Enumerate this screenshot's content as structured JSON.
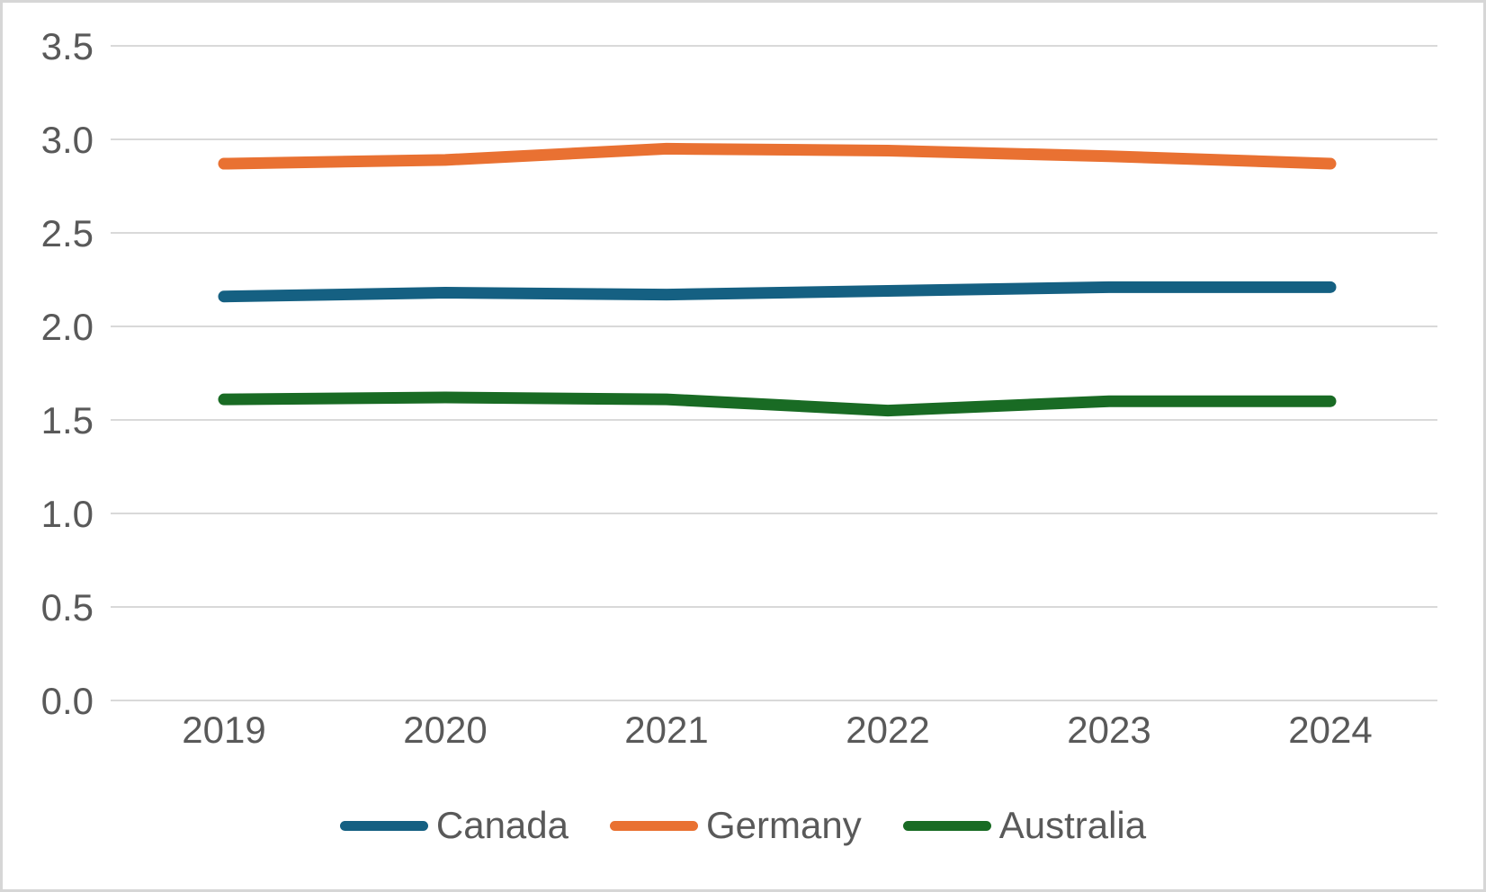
{
  "chart_data": {
    "type": "line",
    "title": "",
    "categories": [
      "2019",
      "2020",
      "2021",
      "2022",
      "2023",
      "2024"
    ],
    "series": [
      {
        "name": "Canada",
        "color": "#156082",
        "values": [
          2.16,
          2.18,
          2.17,
          2.19,
          2.21,
          2.21
        ]
      },
      {
        "name": "Germany",
        "color": "#E97132",
        "values": [
          2.87,
          2.89,
          2.95,
          2.94,
          2.91,
          2.87
        ]
      },
      {
        "name": "Australia",
        "color": "#196B24",
        "values": [
          1.61,
          1.62,
          1.61,
          1.55,
          1.6,
          1.6
        ]
      }
    ],
    "xlabel": "",
    "ylabel": "",
    "ylim": [
      0,
      3.5
    ],
    "ytick_step": 0.5,
    "ytick_labels": [
      "0.0",
      "0.5",
      "1.0",
      "1.5",
      "2.0",
      "2.5",
      "3.0",
      "3.5"
    ],
    "grid": true,
    "grid_color": "#d9d9d9",
    "tick_label_color": "#595959",
    "legend_position": "bottom",
    "line_width": 13
  }
}
